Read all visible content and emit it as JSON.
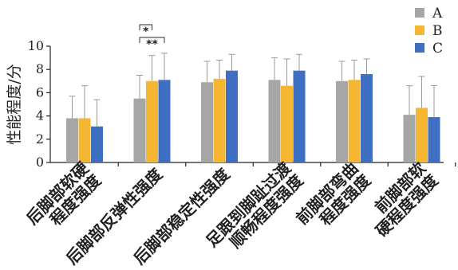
{
  "chart_data": {
    "type": "bar",
    "title": "",
    "xlabel": "",
    "ylabel": "性能程度/分",
    "ylim": [
      0,
      10
    ],
    "yticks": [
      0,
      2,
      4,
      6,
      8,
      10
    ],
    "grid": false,
    "legend_position": "top-right",
    "categories": [
      [
        "后脚部软硬",
        "程度强度"
      ],
      [
        "后脚部反弹性强度"
      ],
      [
        "后脚部稳定性强度"
      ],
      [
        "足跟到脚趾过渡",
        "顺畅程度强度"
      ],
      [
        "前脚部弯曲",
        "程度强度"
      ],
      [
        "前脚部软",
        "硬程度强度"
      ]
    ],
    "series": [
      {
        "name": "A",
        "color": "#a6a6a6",
        "values": [
          3.8,
          5.5,
          6.9,
          7.1,
          7.0,
          4.1
        ],
        "errors": [
          1.9,
          2.0,
          1.8,
          1.9,
          1.7,
          2.5
        ]
      },
      {
        "name": "B",
        "color": "#f5b731",
        "values": [
          3.8,
          7.0,
          7.2,
          6.6,
          7.1,
          4.7
        ],
        "errors": [
          2.8,
          2.2,
          1.6,
          2.3,
          1.7,
          2.7
        ]
      },
      {
        "name": "C",
        "color": "#3e6fc2",
        "values": [
          3.1,
          7.1,
          7.9,
          7.9,
          7.6,
          3.9
        ],
        "errors": [
          2.3,
          2.3,
          1.4,
          1.4,
          1.3,
          2.7
        ]
      }
    ],
    "significance": [
      {
        "category_index": 1,
        "from": "A",
        "to": "B",
        "label": "*"
      },
      {
        "category_index": 1,
        "from": "A",
        "to": "C",
        "label": "**"
      }
    ]
  }
}
